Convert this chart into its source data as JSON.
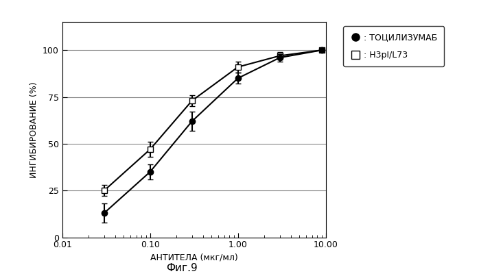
{
  "tocilizumab_x": [
    0.03,
    0.1,
    0.3,
    1.0,
    3.0,
    9.0
  ],
  "tocilizumab_y": [
    13,
    35,
    62,
    85,
    96,
    100
  ],
  "tocilizumab_yerr": [
    5,
    4,
    5,
    3,
    2,
    0
  ],
  "h3pl_x": [
    0.03,
    0.1,
    0.3,
    1.0,
    3.0,
    9.0
  ],
  "h3pl_y": [
    25,
    47,
    73,
    91,
    97,
    100
  ],
  "h3pl_yerr": [
    3,
    4,
    3,
    3,
    2,
    0
  ],
  "xlabel": "АНТИТЕЛА (мкг/мл)",
  "ylabel": "ИНГИБИРОВАНИЕ (%)",
  "caption": "Фиг.9",
  "legend_tocilizumab": ": ТОЦИЛИЗУМАБ",
  "legend_h3pl": ": H3pI/L73",
  "xlim": [
    0.01,
    10.0
  ],
  "ylim": [
    0,
    115
  ],
  "yticks": [
    0,
    25,
    50,
    75,
    100
  ],
  "xticks": [
    0.01,
    0.1,
    1.0,
    10.0
  ],
  "xtick_labels": [
    "0.01",
    "0.10",
    "1.00",
    "10.00"
  ],
  "bg_color": "#ffffff",
  "line_color": "#000000",
  "grid_color": "#888888"
}
